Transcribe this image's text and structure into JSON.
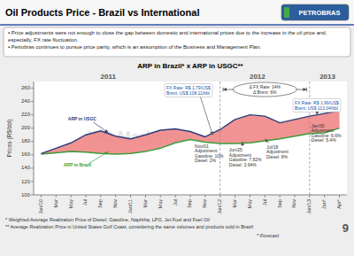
{
  "chart_data": {
    "type": "line",
    "header": "Oil Products Price - Brazil vs International",
    "logo": "PETROBRAS",
    "bullets": [
      "▪ Price adjustments were not enough to close the gap between domestic and international prices due to the increase in the oil price and, especially, FX rate fluctuation.",
      "▪ Petrobras continues to pursue price parity, which is an assumption of the Business and Management Plan."
    ],
    "title": "ARP in Brazil* x ARP in USGC**",
    "ylabel": "Prices (R$/bbl)",
    "categories": [
      "Jan/10",
      "Mar",
      "May",
      "Jul",
      "Sep",
      "Nov",
      "Jan/11",
      "Mar",
      "May",
      "Jul",
      "Sep",
      "Nov",
      "Jan/12",
      "Mar",
      "May",
      "Jul",
      "Sep",
      "Nov",
      "Jan/13",
      "Jan*",
      "Apr*"
    ],
    "series": [
      {
        "name": "ARP in Brazil",
        "color": "#3a9e3a",
        "values": [
          161,
          163,
          165,
          164,
          162,
          161,
          162,
          165,
          170,
          178,
          183,
          179,
          177,
          177,
          178,
          181,
          184,
          188,
          192,
          193,
          200
        ]
      },
      {
        "name": "ARP in USGC",
        "color": "#2c3e7a",
        "values": [
          162,
          170,
          178,
          190,
          196,
          188,
          184,
          190,
          197,
          199,
          195,
          187,
          198,
          213,
          220,
          218,
          208,
          213,
          218,
          222,
          226
        ]
      }
    ],
    "color": "#f08080",
    "ylim": [
      100,
      270
    ],
    "yticks": [
      100,
      120,
      140,
      160,
      180,
      200,
      220,
      240,
      260
    ],
    "grid": false,
    "year_labels": [
      "2011",
      "2012",
      "2013"
    ],
    "annotations": [
      "FX Rate: R$ 1.79/US$\nBrent: US$ 108.11/bbl",
      "Nov/01\nAdjustment:\nGasoline: 10%\nDiesel: 2%",
      "Δ FX Rate: 14%",
      "Δ Brent: 6%",
      "Jun/25\nAdjustment\nGasoline: 7.82%\nDiesel: 3.94%",
      "Jul/18\nAdjustment\nDiesel: 8%",
      "FX Rate: R$ 1.99/US$\nBrent: US$ 113.04/bbl",
      "Jan/30\nAdjustment:\nGasoline: 6.6%\nDiesel: 5.4%"
    ],
    "watermark": "IFC Markets",
    "footnotes": [
      "* Weighted Average Realization Price of Diesel, Gasoline, Naphtha, LPG, Jet Fuel and Fuel Oil",
      "** Average Realization Price in United States Gulf Coast, considering the same volumes and products sold in Brazil",
      "* Forecast"
    ],
    "page_number": "9"
  }
}
